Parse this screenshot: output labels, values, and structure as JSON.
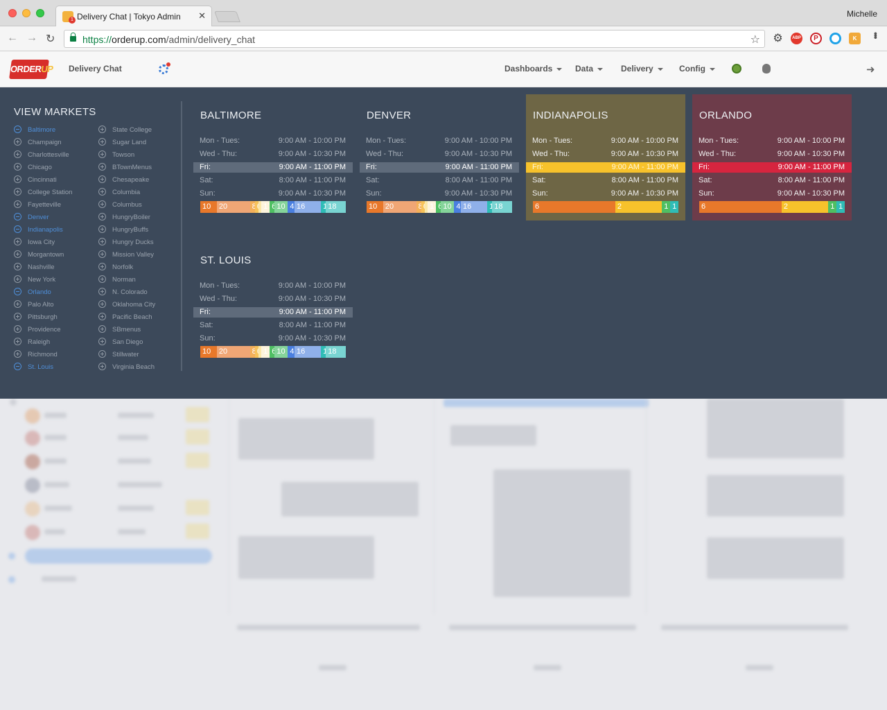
{
  "browser": {
    "tab_title": "Delivery Chat | Tokyo Admin",
    "tab_close": "✕",
    "favicon_badge": "1",
    "user": "Michelle",
    "url_scheme": "https://",
    "url_host": "orderup.com",
    "url_path": "/admin/delivery_chat",
    "icons": [
      "back-icon",
      "forward-icon",
      "reload-icon",
      "lock-icon",
      "star-icon",
      "gear-icon",
      "adblock-icon",
      "pinterest-icon",
      "circle-icon",
      "extension-icon",
      "menu-icon"
    ],
    "abp_label": "ABP",
    "pinterest_label": "P",
    "ext_label": "K"
  },
  "header": {
    "logo_text_a": "ORDER",
    "logo_text_b": "UP",
    "title": "Delivery Chat",
    "menus": [
      "Dashboards",
      "Data",
      "Delivery",
      "Config"
    ]
  },
  "colors": {
    "panel_bg": "#3c495a",
    "indianapolis_card": "#6e6645",
    "orlando_card": "#6d3c4a",
    "selected_market": "#4f8fd9",
    "friday_highlight_indianapolis": "#f7c22b",
    "friday_highlight_orlando": "#d6253f"
  },
  "markets_panel": {
    "title": "VIEW MARKETS",
    "column_1": [
      {
        "name": "Baltimore",
        "selected": true
      },
      {
        "name": "Champaign",
        "selected": false
      },
      {
        "name": "Charlottesville",
        "selected": false
      },
      {
        "name": "Chicago",
        "selected": false
      },
      {
        "name": "Cincinnati",
        "selected": false
      },
      {
        "name": "College Station",
        "selected": false
      },
      {
        "name": "Fayetteville",
        "selected": false
      },
      {
        "name": "Denver",
        "selected": true
      },
      {
        "name": "Indianapolis",
        "selected": true
      },
      {
        "name": "Iowa City",
        "selected": false
      },
      {
        "name": "Morgantown",
        "selected": false
      },
      {
        "name": "Nashville",
        "selected": false
      },
      {
        "name": "New York",
        "selected": false
      },
      {
        "name": "Orlando",
        "selected": true
      },
      {
        "name": "Palo Alto",
        "selected": false
      },
      {
        "name": "Pittsburgh",
        "selected": false
      },
      {
        "name": "Providence",
        "selected": false
      },
      {
        "name": "Raleigh",
        "selected": false
      },
      {
        "name": "Richmond",
        "selected": false
      },
      {
        "name": "St. Louis",
        "selected": true
      }
    ],
    "column_2": [
      {
        "name": "State College",
        "selected": false
      },
      {
        "name": "Sugar Land",
        "selected": false
      },
      {
        "name": "Towson",
        "selected": false
      },
      {
        "name": "BTownMenus",
        "selected": false
      },
      {
        "name": "Chesapeake",
        "selected": false
      },
      {
        "name": "Columbia",
        "selected": false
      },
      {
        "name": "Columbus",
        "selected": false
      },
      {
        "name": "HungryBoiler",
        "selected": false
      },
      {
        "name": "HungryBuffs",
        "selected": false
      },
      {
        "name": "Hungry Ducks",
        "selected": false
      },
      {
        "name": "Mission Valley",
        "selected": false
      },
      {
        "name": "Norfolk",
        "selected": false
      },
      {
        "name": "Norman",
        "selected": false
      },
      {
        "name": "N. Colorado",
        "selected": false
      },
      {
        "name": "Oklahoma City",
        "selected": false
      },
      {
        "name": "Pacific Beach",
        "selected": false
      },
      {
        "name": "SBmenus",
        "selected": false
      },
      {
        "name": "San Diego",
        "selected": false
      },
      {
        "name": "Stillwater",
        "selected": false
      },
      {
        "name": "Virginia Beach",
        "selected": false
      }
    ]
  },
  "market_cards": [
    {
      "name": "BALTIMORE",
      "style": "default",
      "hours": [
        {
          "day": "Mon - Tues:",
          "time": "9:00 AM - 10:00 PM",
          "highlight": false
        },
        {
          "day": "Wed - Thu:",
          "time": "9:00 AM - 10:30 PM",
          "highlight": false
        },
        {
          "day": "Fri:",
          "time": "9:00 AM - 11:00 PM",
          "highlight": true
        },
        {
          "day": "Sat:",
          "time": "8:00 AM - 11:00 PM",
          "highlight": false
        },
        {
          "day": "Sun:",
          "time": "9:00 AM - 10:30 PM",
          "highlight": false
        }
      ],
      "segments": [
        {
          "label": "10",
          "value": 10,
          "color": "#e8782a"
        },
        {
          "label": "20",
          "value": 20,
          "color": "#f0a675"
        },
        {
          "label": "8",
          "value": 3,
          "color": "#f4b05a"
        },
        {
          "label": "6",
          "value": 2,
          "color": "#f7c35a"
        },
        {
          "label": "",
          "value": 2,
          "color": "#fbe8a8"
        },
        {
          "label": "17",
          "value": 5,
          "color": "#fdf4dd"
        },
        {
          "label": "6",
          "value": 3,
          "color": "#4fbf63"
        },
        {
          "label": "10",
          "value": 8,
          "color": "#85d49a"
        },
        {
          "label": "4",
          "value": 4,
          "color": "#4a7fe0"
        },
        {
          "label": "16",
          "value": 16,
          "color": "#8fb0ea"
        },
        {
          "label": "1",
          "value": 3,
          "color": "#2fbcb6"
        },
        {
          "label": "18",
          "value": 12,
          "color": "#79d4d2"
        }
      ]
    },
    {
      "name": "DENVER",
      "style": "default",
      "hours": [
        {
          "day": "Mon - Tues:",
          "time": "9:00 AM - 10:00 PM",
          "highlight": false
        },
        {
          "day": "Wed - Thu:",
          "time": "9:00 AM - 10:30 PM",
          "highlight": false
        },
        {
          "day": "Fri:",
          "time": "9:00 AM - 11:00 PM",
          "highlight": true
        },
        {
          "day": "Sat:",
          "time": "8:00 AM - 11:00 PM",
          "highlight": false
        },
        {
          "day": "Sun:",
          "time": "9:00 AM - 10:30 PM",
          "highlight": false
        }
      ],
      "segments": [
        {
          "label": "10",
          "value": 10,
          "color": "#e8782a"
        },
        {
          "label": "20",
          "value": 20,
          "color": "#f0a675"
        },
        {
          "label": "8",
          "value": 3,
          "color": "#f4b05a"
        },
        {
          "label": "6",
          "value": 2,
          "color": "#f7c35a"
        },
        {
          "label": "",
          "value": 2,
          "color": "#fbe8a8"
        },
        {
          "label": "17",
          "value": 5,
          "color": "#fdf4dd"
        },
        {
          "label": "6",
          "value": 3,
          "color": "#4fbf63"
        },
        {
          "label": "10",
          "value": 8,
          "color": "#85d49a"
        },
        {
          "label": "4",
          "value": 4,
          "color": "#4a7fe0"
        },
        {
          "label": "16",
          "value": 16,
          "color": "#8fb0ea"
        },
        {
          "label": "1",
          "value": 3,
          "color": "#2fbcb6"
        },
        {
          "label": "18",
          "value": 12,
          "color": "#79d4d2"
        }
      ]
    },
    {
      "name": "INDIANAPOLIS",
      "style": "indy",
      "hours": [
        {
          "day": "Mon - Tues:",
          "time": "9:00 AM - 10:00 PM",
          "highlight": false
        },
        {
          "day": "Wed - Thu:",
          "time": "9:00 AM - 10:30 PM",
          "highlight": false
        },
        {
          "day": "Fri:",
          "time": "9:00 AM - 11:00 PM",
          "highlight": true
        },
        {
          "day": "Sat:",
          "time": "8:00 AM - 11:00 PM",
          "highlight": false
        },
        {
          "day": "Sun:",
          "time": "9:00 AM - 10:30 PM",
          "highlight": false
        }
      ],
      "segments": [
        {
          "label": "6",
          "value": 6,
          "color": "#e8782a"
        },
        {
          "label": "2",
          "value": 3.4,
          "color": "#f7c22b"
        },
        {
          "label": "1",
          "value": 0.6,
          "color": "#4fbf63"
        },
        {
          "label": "1",
          "value": 0.6,
          "color": "#2fbcb6"
        }
      ]
    },
    {
      "name": "ORLANDO",
      "style": "orl",
      "hours": [
        {
          "day": "Mon - Tues:",
          "time": "9:00 AM - 10:00 PM",
          "highlight": false
        },
        {
          "day": "Wed - Thu:",
          "time": "9:00 AM - 10:30 PM",
          "highlight": false
        },
        {
          "day": "Fri:",
          "time": "9:00 AM - 11:00 PM",
          "highlight": true
        },
        {
          "day": "Sat:",
          "time": "8:00 AM - 11:00 PM",
          "highlight": false
        },
        {
          "day": "Sun:",
          "time": "9:00 AM - 10:30 PM",
          "highlight": false
        }
      ],
      "segments": [
        {
          "label": "6",
          "value": 6,
          "color": "#e8782a"
        },
        {
          "label": "2",
          "value": 3.4,
          "color": "#f7c22b"
        },
        {
          "label": "1",
          "value": 0.6,
          "color": "#4fbf63"
        },
        {
          "label": "1",
          "value": 0.6,
          "color": "#2fbcb6"
        }
      ]
    },
    {
      "name": "ST. LOUIS",
      "style": "default",
      "hours": [
        {
          "day": "Mon - Tues:",
          "time": "9:00 AM - 10:00 PM",
          "highlight": false
        },
        {
          "day": "Wed - Thu:",
          "time": "9:00 AM - 10:30 PM",
          "highlight": false
        },
        {
          "day": "Fri:",
          "time": "9:00 AM - 11:00 PM",
          "highlight": true
        },
        {
          "day": "Sat:",
          "time": "8:00 AM - 11:00 PM",
          "highlight": false
        },
        {
          "day": "Sun:",
          "time": "9:00 AM - 10:30 PM",
          "highlight": false
        }
      ],
      "segments": [
        {
          "label": "10",
          "value": 10,
          "color": "#e8782a"
        },
        {
          "label": "20",
          "value": 20,
          "color": "#f0a675"
        },
        {
          "label": "8",
          "value": 3,
          "color": "#f4b05a"
        },
        {
          "label": "6",
          "value": 2,
          "color": "#f7c35a"
        },
        {
          "label": "",
          "value": 2,
          "color": "#fbe8a8"
        },
        {
          "label": "17",
          "value": 5,
          "color": "#fdf4dd"
        },
        {
          "label": "6",
          "value": 3,
          "color": "#4fbf63"
        },
        {
          "label": "10",
          "value": 8,
          "color": "#85d49a"
        },
        {
          "label": "4",
          "value": 4,
          "color": "#4a7fe0"
        },
        {
          "label": "16",
          "value": 16,
          "color": "#8fb0ea"
        },
        {
          "label": "1",
          "value": 3,
          "color": "#2fbcb6"
        },
        {
          "label": "18",
          "value": 12,
          "color": "#79d4d2"
        }
      ]
    }
  ]
}
